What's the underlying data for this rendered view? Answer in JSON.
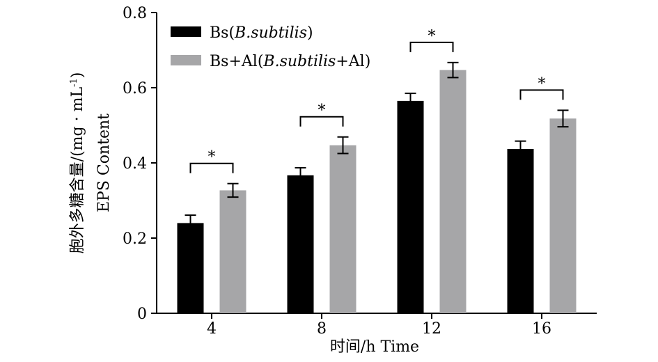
{
  "chart_data": {
    "type": "bar",
    "categories": [
      "4",
      "8",
      "12",
      "16"
    ],
    "series": [
      {
        "name": "Bs(B.subtilis)",
        "name_parts": [
          "Bs(",
          "B.subtilis",
          ")"
        ],
        "color": "#000000",
        "values": [
          0.24,
          0.367,
          0.565,
          0.437
        ],
        "errors": [
          0.021,
          0.02,
          0.02,
          0.021
        ]
      },
      {
        "name": "Bs+Al(B.subtilis+Al)",
        "name_parts": [
          "Bs+Al(",
          "B.subtilis",
          "+Al)"
        ],
        "color": "#a6a6a8",
        "values": [
          0.327,
          0.447,
          0.647,
          0.518
        ],
        "errors": [
          0.018,
          0.022,
          0.02,
          0.022
        ]
      }
    ],
    "significance": [
      "*",
      "*",
      "*",
      "*"
    ],
    "ylim": [
      0,
      0.8
    ],
    "yticks": [
      "0",
      "0.2",
      "0.4",
      "0.6",
      "0.8"
    ],
    "ylabel_line1": "胞外多糖含量/(mg · mL",
    "ylabel_sup": "-1",
    "ylabel_close": ")",
    "ylabel_line2": "EPS Content",
    "xlabel": "时间/h Time",
    "legend_position": "top-left",
    "grid": false
  }
}
